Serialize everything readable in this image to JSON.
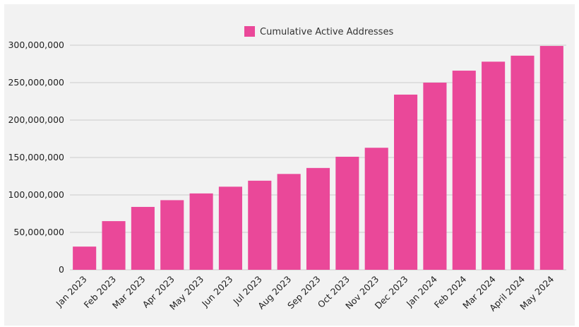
{
  "chart_data": {
    "type": "bar",
    "categories": [
      "Jan 2023",
      "Feb 2023",
      "Mar 2023",
      "Apr 2023",
      "May 2023",
      "Jun 2023",
      "Jul 2023",
      "Aug 2023",
      "Sep 2023",
      "Oct 2023",
      "Nov 2023",
      "Dec 2023",
      "Jan 2024",
      "Feb 2024",
      "Mar 2024",
      "April 2024",
      "May 2024"
    ],
    "series": [
      {
        "name": "Cumulative Active Addresses",
        "color": "#ea4899",
        "values": [
          31000000,
          65000000,
          84000000,
          93000000,
          102000000,
          111000000,
          119000000,
          128000000,
          136000000,
          151000000,
          163000000,
          234000000,
          250000000,
          266000000,
          278000000,
          286000000,
          299000000
        ]
      }
    ],
    "title": "",
    "xlabel": "",
    "ylabel": "",
    "ylim": [
      0,
      300000000
    ],
    "yticks": [
      0,
      50000000,
      100000000,
      150000000,
      200000000,
      250000000,
      300000000
    ],
    "ytick_labels": [
      "0",
      "50,000,000",
      "100,000,000",
      "150,000,000",
      "200,000,000",
      "250,000,000",
      "300,000,000"
    ],
    "grid": true,
    "grid_color": "#cccccc",
    "background_color": "#f2f2f2",
    "legend_position": "top-center"
  }
}
